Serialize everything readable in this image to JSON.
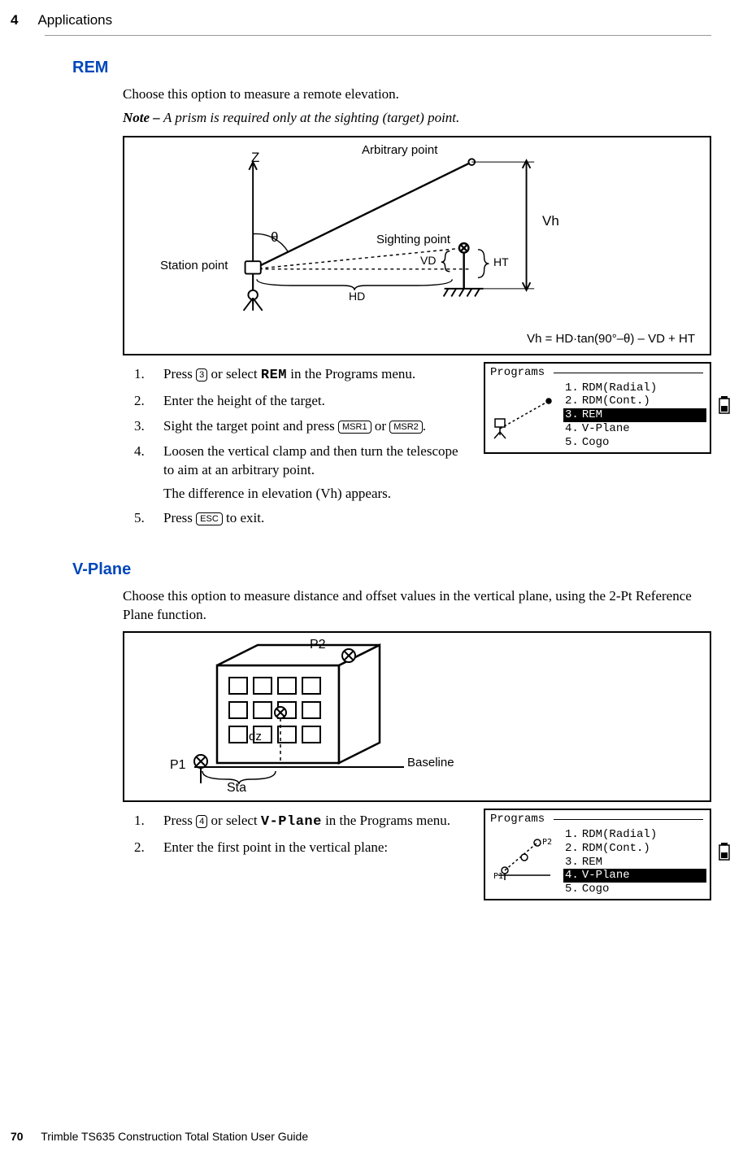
{
  "header": {
    "chapter_number": "4",
    "chapter_title": "Applications"
  },
  "footer": {
    "page_number": "70",
    "book_title": "Trimble TS635 Construction Total Station User Guide"
  },
  "rem": {
    "heading": "REM",
    "intro": "Choose this option to measure a remote elevation.",
    "note_label": "Note – ",
    "note_body": "A prism is required only at the sighting (target) point.",
    "fig": {
      "arbitrary": "Arbitrary point",
      "sighting": "Sighting point",
      "station": "Station point",
      "z": "Z",
      "theta": "θ",
      "vh": "Vh",
      "vd": "VD",
      "ht": "HT",
      "hd": "HD",
      "formula": "Vh = HD·tan(90°–θ) – VD + HT"
    },
    "steps": {
      "s1a": "Press ",
      "s1_key": "3",
      "s1b": " or select ",
      "s1_mono": "REM",
      "s1c": " in the Programs menu.",
      "s2": "Enter the height of the target.",
      "s3a": "Sight the target point and press ",
      "s3_k1": "MSR1",
      "s3b": " or ",
      "s3_k2": "MSR2",
      "s3c": ".",
      "s4": "Loosen the vertical clamp and then turn the telescope to aim at an arbitrary point.",
      "s4_after": "The difference in elevation (Vh) appears.",
      "s5a": "Press ",
      "s5_key": "ESC",
      "s5b": " to exit."
    },
    "lcd": {
      "title": "Programs",
      "items": [
        {
          "n": "1.",
          "t": "RDM(Radial)",
          "hl": false
        },
        {
          "n": "2.",
          "t": "RDM(Cont.)",
          "hl": false
        },
        {
          "n": "3.",
          "t": "REM",
          "hl": true
        },
        {
          "n": "4.",
          "t": "V-Plane",
          "hl": false
        },
        {
          "n": "5.",
          "t": "Cogo",
          "hl": false
        }
      ]
    }
  },
  "vplane": {
    "heading": "V-Plane",
    "intro": "Choose this option to measure distance and offset values in the vertical plane, using the 2-Pt Reference Plane function.",
    "fig": {
      "p1": "P1",
      "p2": "P2",
      "dz": "dz",
      "sta": "Sta",
      "baseline": "Baseline"
    },
    "steps": {
      "s1a": "Press ",
      "s1_key": "4",
      "s1b": " or select ",
      "s1_mono": "V-Plane",
      "s1c": " in the Programs menu.",
      "s2": "Enter the first point in the vertical plane:"
    },
    "lcd": {
      "title": "Programs",
      "items": [
        {
          "n": "1.",
          "t": "RDM(Radial)",
          "hl": false
        },
        {
          "n": "2.",
          "t": "RDM(Cont.)",
          "hl": false
        },
        {
          "n": "3.",
          "t": "REM",
          "hl": false
        },
        {
          "n": "4.",
          "t": "V-Plane",
          "hl": true
        },
        {
          "n": "5.",
          "t": "Cogo",
          "hl": false
        }
      ]
    }
  }
}
